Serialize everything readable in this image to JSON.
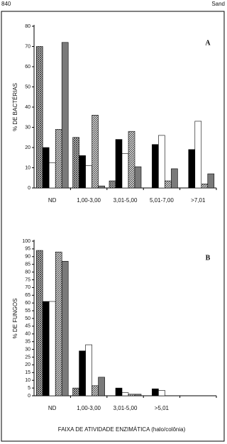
{
  "page_number": "840",
  "running_head": "Sand",
  "chart_data": [
    {
      "type": "bar",
      "panel_label": "A",
      "y_label": "% DE BACTÉRIAS",
      "categories": [
        "ND",
        "1,00-3,00",
        "3,01-5,00",
        "5,01-7,00",
        ">7,01"
      ],
      "ylim": [
        0,
        80
      ],
      "yticks": [
        0,
        10,
        20,
        30,
        40,
        50,
        60,
        70,
        80
      ],
      "series": [
        {
          "color": "#666666",
          "pattern": "crosshatch",
          "values": [
            70,
            25,
            3.5,
            0,
            0
          ]
        },
        {
          "color": "#000000",
          "pattern": "solid",
          "values": [
            20,
            16,
            24,
            21.5,
            19
          ]
        },
        {
          "color": "#ffffff",
          "pattern": "solid",
          "values": [
            12.5,
            11,
            17,
            26,
            33
          ]
        },
        {
          "color": "#666666",
          "pattern": "diagonal",
          "values": [
            29,
            36,
            28,
            3.5,
            2
          ]
        },
        {
          "color": "#7a7a7a",
          "pattern": "solid",
          "values": [
            72,
            1,
            10.5,
            9.5,
            7
          ]
        }
      ]
    },
    {
      "type": "bar",
      "panel_label": "B",
      "y_label": "% DE FUNGOS",
      "x_label": "FAIXA DE ATIVIDADE ENZIMÁTICA (halo/colônia)",
      "categories": [
        "ND",
        "1,00-3,00",
        "3,01-5,00",
        ">5,01",
        null
      ],
      "ylim": [
        0,
        100
      ],
      "yticks": [
        0,
        5,
        10,
        15,
        20,
        25,
        30,
        35,
        40,
        45,
        50,
        55,
        60,
        65,
        70,
        75,
        80,
        85,
        90,
        95,
        100
      ],
      "series": [
        {
          "color": "#666666",
          "pattern": "crosshatch",
          "values": [
            94,
            5,
            0,
            0,
            0
          ]
        },
        {
          "color": "#000000",
          "pattern": "solid",
          "values": [
            61,
            29,
            5,
            4.5,
            0
          ]
        },
        {
          "color": "#ffffff",
          "pattern": "solid",
          "values": [
            61,
            33,
            2,
            3.5,
            0
          ]
        },
        {
          "color": "#666666",
          "pattern": "diagonal",
          "values": [
            93,
            6.5,
            1,
            0,
            0
          ]
        },
        {
          "color": "#7a7a7a",
          "pattern": "solid",
          "values": [
            87,
            12,
            1,
            0,
            0
          ]
        }
      ]
    }
  ]
}
